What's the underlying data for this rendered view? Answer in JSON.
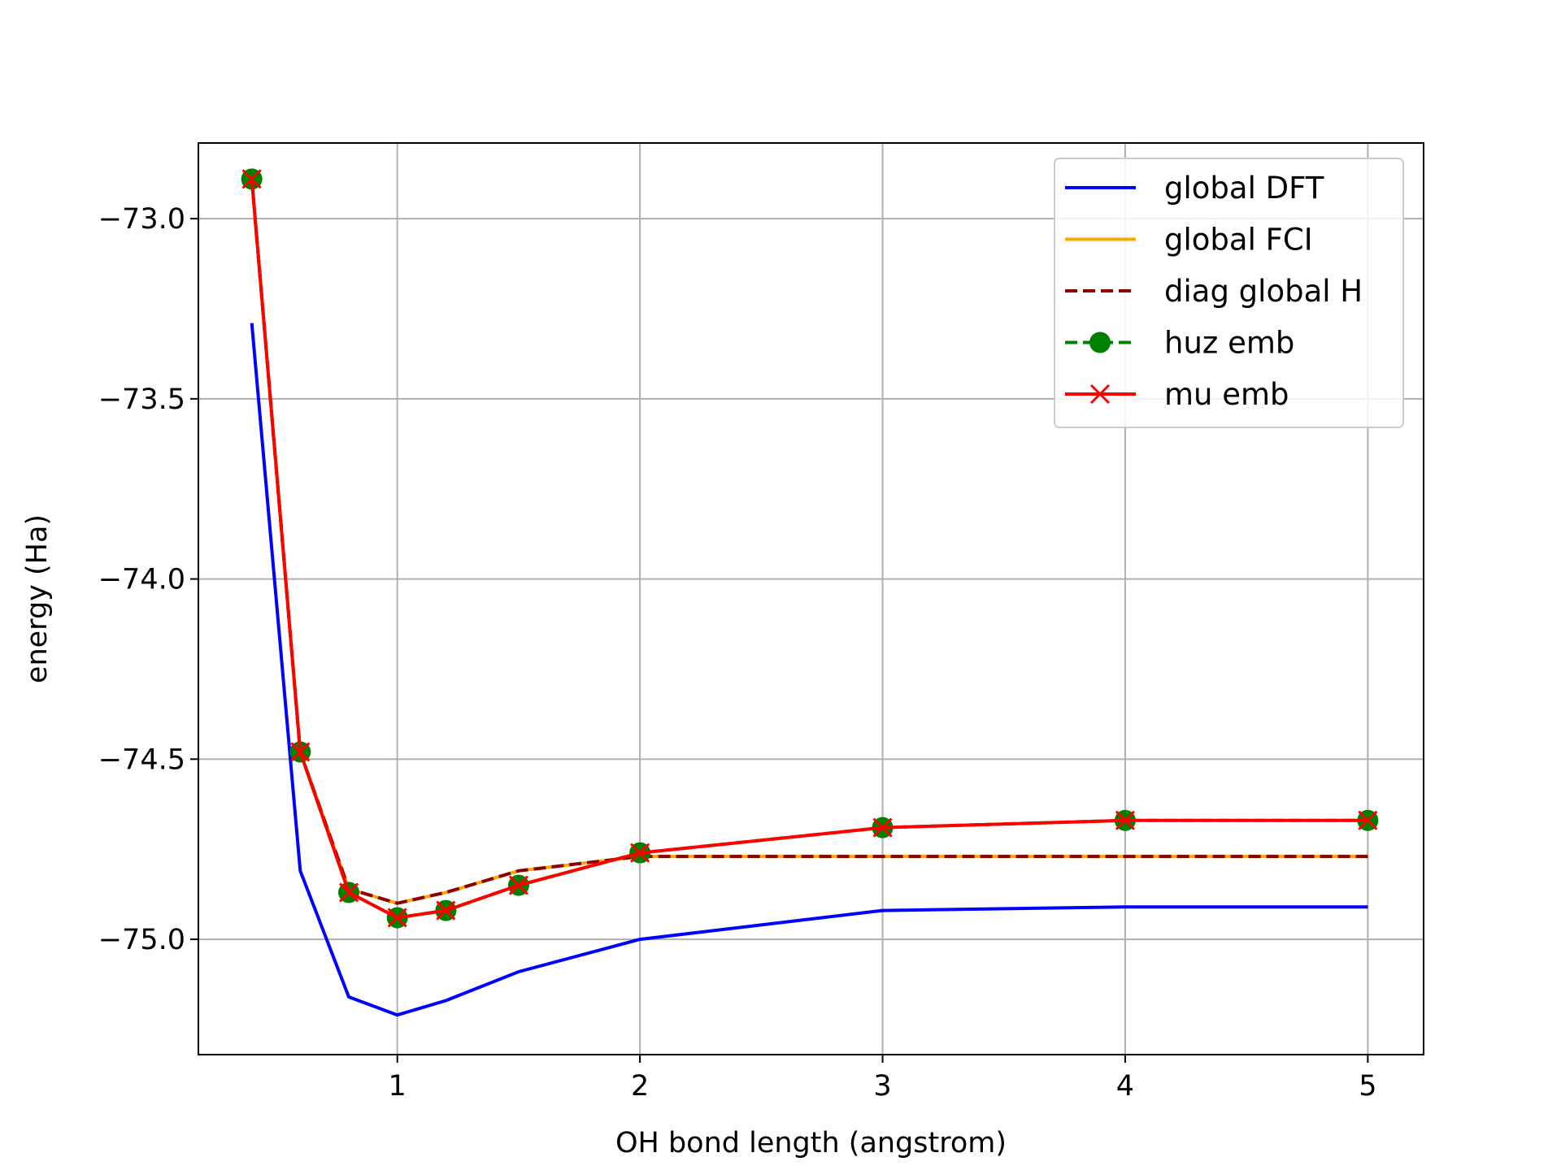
{
  "chart_data": {
    "type": "line",
    "title": "",
    "xlabel": "OH bond length (angstrom)",
    "ylabel": "energy (Ha)",
    "xlim": [
      0.18,
      5.23
    ],
    "ylim": [
      -75.32,
      -72.79
    ],
    "xticks": [
      1,
      2,
      3,
      4,
      5
    ],
    "xtick_labels": [
      "1",
      "2",
      "3",
      "4",
      "5"
    ],
    "yticks": [
      -73.0,
      -73.5,
      -74.0,
      -74.5,
      -75.0
    ],
    "ytick_labels": [
      "−73.0",
      "−73.5",
      "−74.0",
      "−74.5",
      "−75.0"
    ],
    "grid": true,
    "legend_position": "top-right",
    "x": [
      0.4,
      0.6,
      0.8,
      1.0,
      1.2,
      1.5,
      2.0,
      3.0,
      4.0,
      5.0
    ],
    "series": [
      {
        "name": "global DFT",
        "color": "#0000ff",
        "style": "solid",
        "marker": "none",
        "values": [
          -73.29,
          -74.81,
          -75.16,
          -75.21,
          -75.17,
          -75.09,
          -75.0,
          -74.92,
          -74.91,
          -74.91
        ]
      },
      {
        "name": "global FCI",
        "color": "#ffa500",
        "style": "solid",
        "marker": "none",
        "values": [
          -72.89,
          -74.48,
          -74.86,
          -74.9,
          -74.87,
          -74.81,
          -74.77,
          -74.77,
          -74.77,
          -74.77
        ]
      },
      {
        "name": "diag global H",
        "color": "#8b0000",
        "style": "dashed",
        "marker": "none",
        "values": [
          -72.89,
          -74.48,
          -74.86,
          -74.9,
          -74.87,
          -74.81,
          -74.77,
          -74.77,
          -74.77,
          -74.77
        ]
      },
      {
        "name": "huz emb",
        "color": "#008000",
        "style": "dashed",
        "marker": "circle",
        "values": [
          -72.89,
          -74.48,
          -74.87,
          -74.94,
          -74.92,
          -74.85,
          -74.76,
          -74.69,
          -74.67,
          -74.67
        ]
      },
      {
        "name": "mu emb",
        "color": "#ff0000",
        "style": "solid",
        "marker": "x",
        "values": [
          -72.89,
          -74.48,
          -74.87,
          -74.94,
          -74.92,
          -74.85,
          -74.76,
          -74.69,
          -74.67,
          -74.67
        ]
      }
    ]
  }
}
